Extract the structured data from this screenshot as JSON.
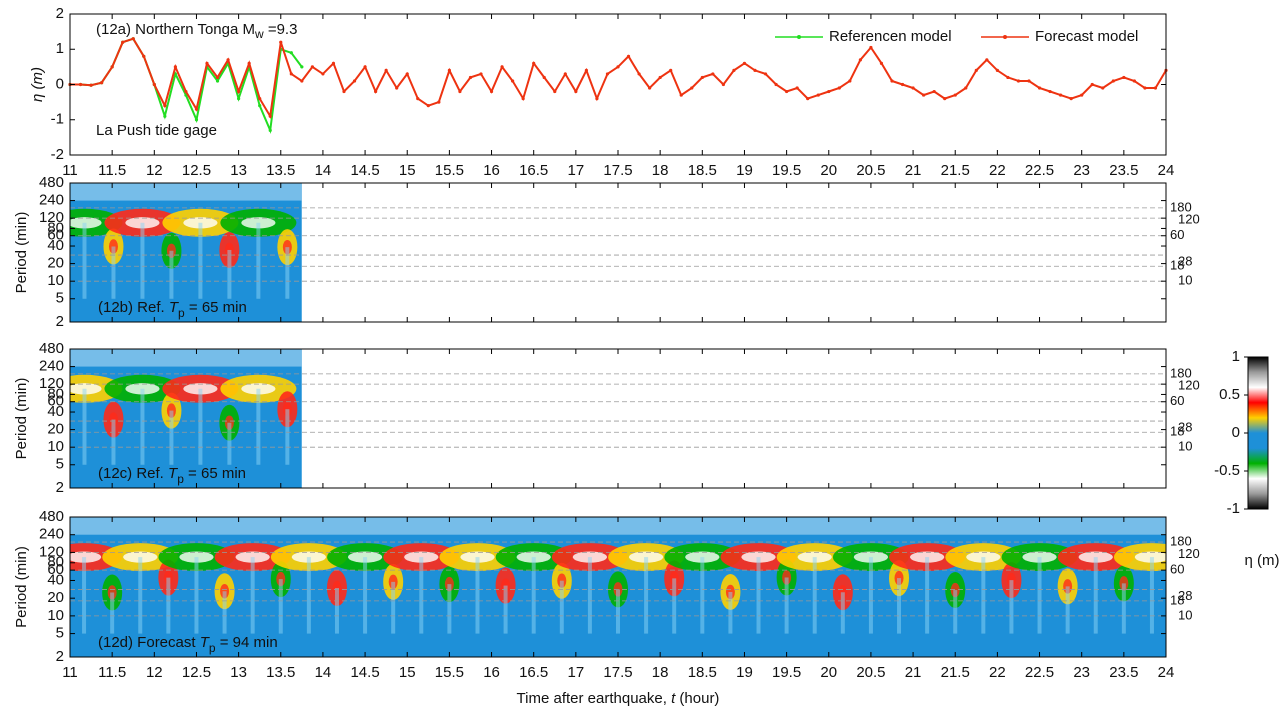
{
  "chart_data": [
    {
      "type": "line",
      "title": "(12a) Northern Tonga  M",
      "title_sub": "w",
      "title_end": " =9.3",
      "annotation": "La Push tide gage",
      "ylabel": "η (m)",
      "x": [
        11,
        11.125,
        11.25,
        11.375,
        11.5,
        11.625,
        11.75,
        11.875,
        12,
        12.125,
        12.25,
        12.375,
        12.5,
        12.625,
        12.75,
        12.875,
        13,
        13.125,
        13.25,
        13.375,
        13.5,
        13.625,
        13.75,
        13.875,
        14,
        14.125,
        14.25,
        14.375,
        14.5,
        14.625,
        14.75,
        14.875,
        15,
        15.125,
        15.25,
        15.375,
        15.5,
        15.625,
        15.75,
        15.875,
        16,
        16.125,
        16.25,
        16.375,
        16.5,
        16.625,
        16.75,
        16.875,
        17,
        17.125,
        17.25,
        17.375,
        17.5,
        17.625,
        17.75,
        17.875,
        18,
        18.125,
        18.25,
        18.375,
        18.5,
        18.625,
        18.75,
        18.875,
        19,
        19.125,
        19.25,
        19.375,
        19.5,
        19.625,
        19.75,
        19.875,
        20,
        20.125,
        20.25,
        20.375,
        20.5,
        20.625,
        20.75,
        20.875,
        21,
        21.125,
        21.25,
        21.375,
        21.5,
        21.625,
        21.75,
        21.875,
        22,
        22.125,
        22.25,
        22.375,
        22.5,
        22.625,
        22.75,
        22.875,
        23,
        23.125,
        23.25,
        23.375,
        23.5,
        23.625,
        23.75,
        23.875,
        24
      ],
      "series": [
        {
          "name": "Referencen model",
          "color": "#22dd22",
          "values": [
            0,
            0,
            -0.02,
            0.05,
            0.5,
            1.2,
            1.3,
            0.8,
            0.0,
            -0.9,
            0.3,
            -0.3,
            -1.0,
            0.5,
            0.1,
            0.6,
            -0.4,
            0.5,
            -0.6,
            -1.3,
            1.0,
            0.9,
            0.5,
            null,
            null,
            null,
            null,
            null,
            null,
            null,
            null,
            null,
            null,
            null,
            null,
            null,
            null,
            null,
            null,
            null,
            null,
            null,
            null,
            null,
            null,
            null,
            null,
            null,
            null,
            null,
            null,
            null,
            null,
            null,
            null,
            null,
            null,
            null,
            null,
            null,
            null,
            null,
            null,
            null,
            null,
            null,
            null,
            null,
            null,
            null,
            null,
            null,
            null,
            null,
            null,
            null,
            null,
            null,
            null,
            null,
            null,
            null,
            null,
            null,
            null,
            null,
            null,
            null,
            null,
            null,
            null,
            null,
            null,
            null,
            null,
            null,
            null,
            null,
            null,
            null,
            null,
            null,
            null,
            null,
            null
          ]
        },
        {
          "name": "Forecast model",
          "color": "#ee3311",
          "values": [
            0,
            0,
            -0.02,
            0.05,
            0.5,
            1.2,
            1.3,
            0.8,
            0.0,
            -0.6,
            0.5,
            -0.2,
            -0.7,
            0.6,
            0.2,
            0.7,
            -0.2,
            0.6,
            -0.4,
            -0.9,
            1.2,
            0.3,
            0.1,
            0.5,
            0.3,
            0.6,
            -0.2,
            0.1,
            0.5,
            -0.2,
            0.4,
            -0.1,
            0.3,
            -0.4,
            -0.6,
            -0.5,
            0.4,
            -0.2,
            0.2,
            0.3,
            -0.2,
            0.5,
            0.1,
            -0.4,
            0.6,
            0.2,
            -0.2,
            0.3,
            -0.2,
            0.4,
            -0.4,
            0.3,
            0.5,
            0.8,
            0.3,
            -0.1,
            0.2,
            0.4,
            -0.3,
            -0.1,
            0.2,
            0.3,
            0.0,
            0.4,
            0.6,
            0.4,
            0.3,
            0.0,
            -0.2,
            -0.1,
            -0.4,
            -0.3,
            -0.2,
            -0.1,
            0.1,
            0.7,
            1.05,
            0.6,
            0.1,
            0.0,
            -0.1,
            -0.3,
            -0.2,
            -0.4,
            -0.3,
            -0.1,
            0.4,
            0.7,
            0.4,
            0.2,
            0.1,
            0.1,
            -0.1,
            -0.2,
            -0.3,
            -0.4,
            -0.3,
            0.0,
            -0.1,
            0.1,
            0.2,
            0.1,
            -0.1,
            -0.1,
            0.4
          ]
        }
      ],
      "xlim": [
        11,
        24
      ],
      "xticks": [
        11,
        11.5,
        12,
        12.5,
        13,
        13.5,
        14,
        14.5,
        15,
        15.5,
        16,
        16.5,
        17,
        17.5,
        18,
        18.5,
        19,
        19.5,
        20,
        20.5,
        21,
        21.5,
        22,
        22.5,
        23,
        23.5,
        24
      ],
      "ylim": [
        -2,
        2
      ],
      "yticks": [
        -2,
        -1,
        0,
        1,
        2
      ],
      "legend": "upper right"
    },
    {
      "type": "wavelet",
      "label": "(12b) Ref. ",
      "label_t": "T",
      "label_sub": "p",
      "label_end": " =  65 min",
      "ylabel": "Period (min)",
      "log_y": true,
      "ylim": [
        2,
        480
      ],
      "yticks": [
        2,
        5,
        10,
        20,
        40,
        60,
        80,
        120,
        240,
        480
      ],
      "xlim": [
        11,
        24
      ],
      "xticks": [
        11,
        11.5,
        12,
        12.5,
        13,
        13.5,
        14,
        14.5,
        15,
        15.5,
        16,
        16.5,
        17,
        17.5,
        18,
        18.5,
        19,
        19.5,
        20,
        20.5,
        21,
        21.5,
        22,
        22.5,
        23,
        23.5,
        24
      ],
      "ref_periods": [
        10,
        18,
        28,
        60,
        120,
        180
      ]
    },
    {
      "type": "wavelet",
      "label": "(12c) Ref. ",
      "label_t": "T",
      "label_sub": "p",
      "label_end": " =  65 min",
      "ylabel": "Period (min)",
      "log_y": true,
      "ylim": [
        2,
        480
      ],
      "yticks": [
        2,
        5,
        10,
        20,
        40,
        60,
        80,
        120,
        240,
        480
      ],
      "xlim": [
        11,
        24
      ],
      "xticks": [
        11,
        11.5,
        12,
        12.5,
        13,
        13.5,
        14,
        14.5,
        15,
        15.5,
        16,
        16.5,
        17,
        17.5,
        18,
        18.5,
        19,
        19.5,
        20,
        20.5,
        21,
        21.5,
        22,
        22.5,
        23,
        23.5,
        24
      ],
      "ref_periods": [
        10,
        18,
        28,
        60,
        120,
        180
      ]
    },
    {
      "type": "wavelet",
      "label": "(12d) Forecast ",
      "label_t": "T",
      "label_sub": "p",
      "label_end": " =  94 min",
      "ylabel": "Period (min)",
      "xlabel": "Time after earthquake,  ",
      "xlabel_t": "t",
      "xlabel_end": " (hour)",
      "log_y": true,
      "ylim": [
        2,
        480
      ],
      "yticks": [
        2,
        5,
        10,
        20,
        40,
        60,
        80,
        120,
        240,
        480
      ],
      "xlim": [
        11,
        24
      ],
      "xticks": [
        11,
        11.5,
        12,
        12.5,
        13,
        13.5,
        14,
        14.5,
        15,
        15.5,
        16,
        16.5,
        17,
        17.5,
        18,
        18.5,
        19,
        19.5,
        20,
        20.5,
        21,
        21.5,
        22,
        22.5,
        23,
        23.5,
        24
      ],
      "ref_periods": [
        10,
        18,
        28,
        60,
        120,
        180
      ],
      "colorbar": {
        "label": "η (m)",
        "lim": [
          -1,
          1
        ],
        "ticks": [
          -1,
          -0.5,
          0,
          0.5,
          1
        ],
        "colors": [
          "#000000",
          "#9a9a9a",
          "#ffffff",
          "#00b000",
          "#1e90d8",
          "#1e90d8",
          "#ffd000",
          "#ff0000",
          "#ffffff",
          "#9a9a9a",
          "#000000"
        ]
      }
    }
  ]
}
